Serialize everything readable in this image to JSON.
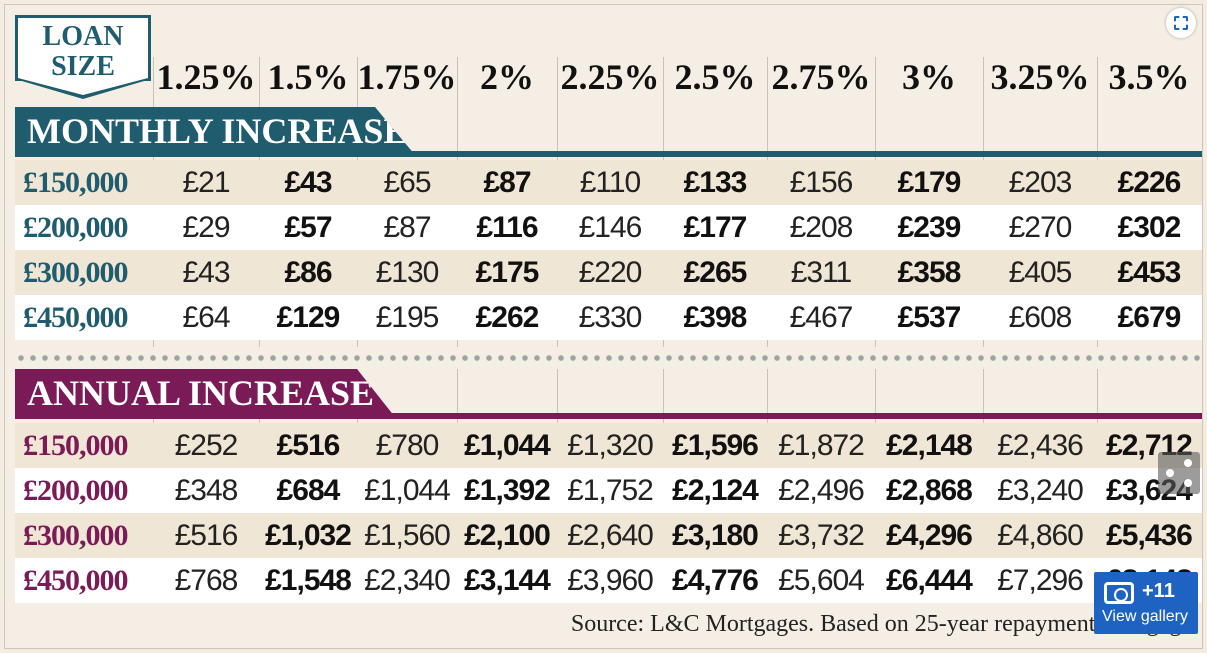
{
  "loan_size_label_line1": "LOAN",
  "loan_size_label_line2": "SIZE",
  "rates": [
    "1.25%",
    "1.5%",
    "1.75%",
    "2%",
    "2.25%",
    "2.5%",
    "2.75%",
    "3%",
    "3.25%",
    "3.5%"
  ],
  "monthly": {
    "title": "MONTHLY INCREASE",
    "color": "#1f5c6e",
    "rows": [
      {
        "loan": "£150,000",
        "values": [
          "£21",
          "£43",
          "£65",
          "£87",
          "£110",
          "£133",
          "£156",
          "£179",
          "£203",
          "£226"
        ]
      },
      {
        "loan": "£200,000",
        "values": [
          "£29",
          "£57",
          "£87",
          "£116",
          "£146",
          "£177",
          "£208",
          "£239",
          "£270",
          "£302"
        ]
      },
      {
        "loan": "£300,000",
        "values": [
          "£43",
          "£86",
          "£130",
          "£175",
          "£220",
          "£265",
          "£311",
          "£358",
          "£405",
          "£453"
        ]
      },
      {
        "loan": "£450,000",
        "values": [
          "£64",
          "£129",
          "£195",
          "£262",
          "£330",
          "£398",
          "£467",
          "£537",
          "£608",
          "£679"
        ]
      }
    ]
  },
  "annual": {
    "title": "ANNUAL INCREASE",
    "color": "#7a1a57",
    "rows": [
      {
        "loan": "£150,000",
        "values": [
          "£252",
          "£516",
          "£780",
          "£1,044",
          "£1,320",
          "£1,596",
          "£1,872",
          "£2,148",
          "£2,436",
          "£2,712"
        ]
      },
      {
        "loan": "£200,000",
        "values": [
          "£348",
          "£684",
          "£1,044",
          "£1,392",
          "£1,752",
          "£2,124",
          "£2,496",
          "£2,868",
          "£3,240",
          "£3,624"
        ]
      },
      {
        "loan": "£300,000",
        "values": [
          "£516",
          "£1,032",
          "£1,560",
          "£2,100",
          "£2,640",
          "£3,180",
          "£3,732",
          "£4,296",
          "£4,860",
          "£5,436"
        ]
      },
      {
        "loan": "£450,000",
        "values": [
          "£768",
          "£1,548",
          "£2,340",
          "£3,144",
          "£3,960",
          "£4,776",
          "£5,604",
          "£6,444",
          "£7,296",
          "£8,148"
        ]
      }
    ]
  },
  "source": "Source: L&C Mortgages. Based on 25-year repayment mortgage",
  "gallery": {
    "count": "+11",
    "label": "View gallery"
  }
}
